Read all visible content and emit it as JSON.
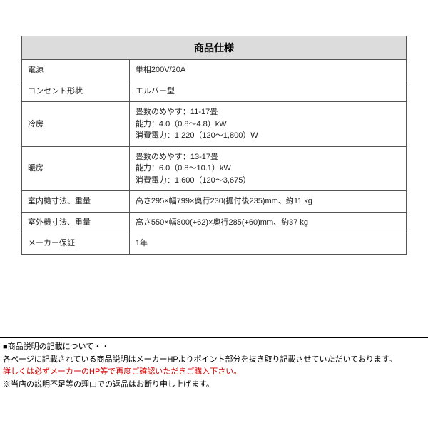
{
  "spec": {
    "title": "商品仕様",
    "rows": [
      {
        "label": "電源",
        "value": "単相200V/20A"
      },
      {
        "label": "コンセント形状",
        "value": "エルバー型"
      },
      {
        "label": "冷房",
        "value": "畳数のめやす：11-17畳\n能力：4.0（0.8～4.8）kW\n消費電力：1,220（120～1,800）W"
      },
      {
        "label": "暖房",
        "value": "畳数のめやす：13-17畳\n能力：6.0（0.8～10.1）kW\n消費電力：1,600（120～3,675）"
      },
      {
        "label": "室内機寸法、重量",
        "value": "高さ295×幅799×奥行230(据付後235)mm、約11 kg"
      },
      {
        "label": "室外機寸法、重量",
        "value": "高さ550×幅800(+62)×奥行285(+60)mm、約37 kg"
      },
      {
        "label": "メーカー保証",
        "value": "1年"
      }
    ]
  },
  "notes": {
    "line1": "■商品説明の記載について・・",
    "line2": "各ページに記載されている商品説明はメーカーHPよりポイント部分を抜き取り記載させていただいております。",
    "line3_red": "詳しくは必ずメーカーのHP等で再度ご確認いただきご購入下さい。",
    "line4": "※当店の説明不足等の理由での返品はお断り申し上げます。"
  },
  "style": {
    "title_bg": "#dcdcdc",
    "border_color": "#555555",
    "red": "#d60000",
    "font_size_title": 14,
    "font_size_body": 11
  }
}
